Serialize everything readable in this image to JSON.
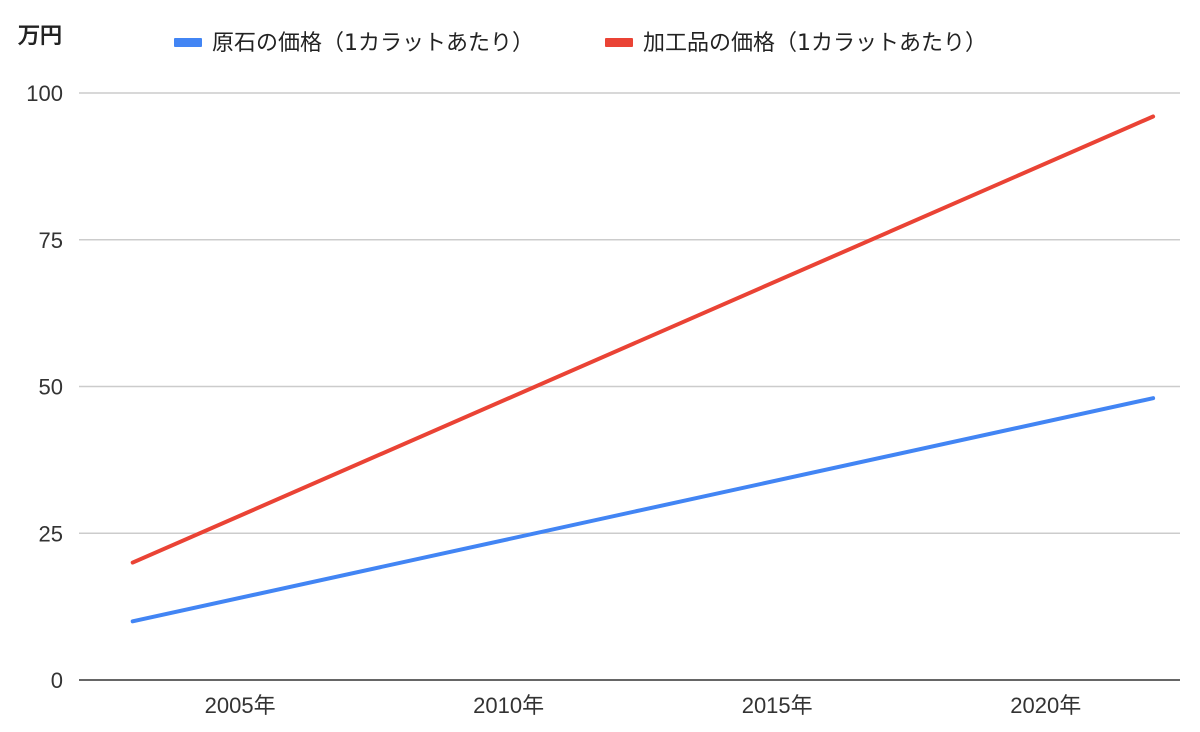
{
  "chart_data": {
    "type": "line",
    "unit_label": "万円",
    "x": [
      2003,
      2022
    ],
    "xticks": [
      {
        "value": 2005,
        "label": "2005年"
      },
      {
        "value": 2010,
        "label": "2010年"
      },
      {
        "value": 2015,
        "label": "2015年"
      },
      {
        "value": 2020,
        "label": "2020年"
      }
    ],
    "xlim": [
      2002,
      2022.5
    ],
    "ylim": [
      0,
      100
    ],
    "yticks": [
      0,
      25,
      50,
      75,
      100
    ],
    "grid": true,
    "legend_position": "top",
    "series": [
      {
        "name": "原石の価格（1カラットあたり）",
        "color": "#4285f4",
        "values": [
          10,
          48
        ]
      },
      {
        "name": "加工品の価格（1カラットあたり）",
        "color": "#ea4335",
        "values": [
          20,
          96
        ]
      }
    ]
  }
}
